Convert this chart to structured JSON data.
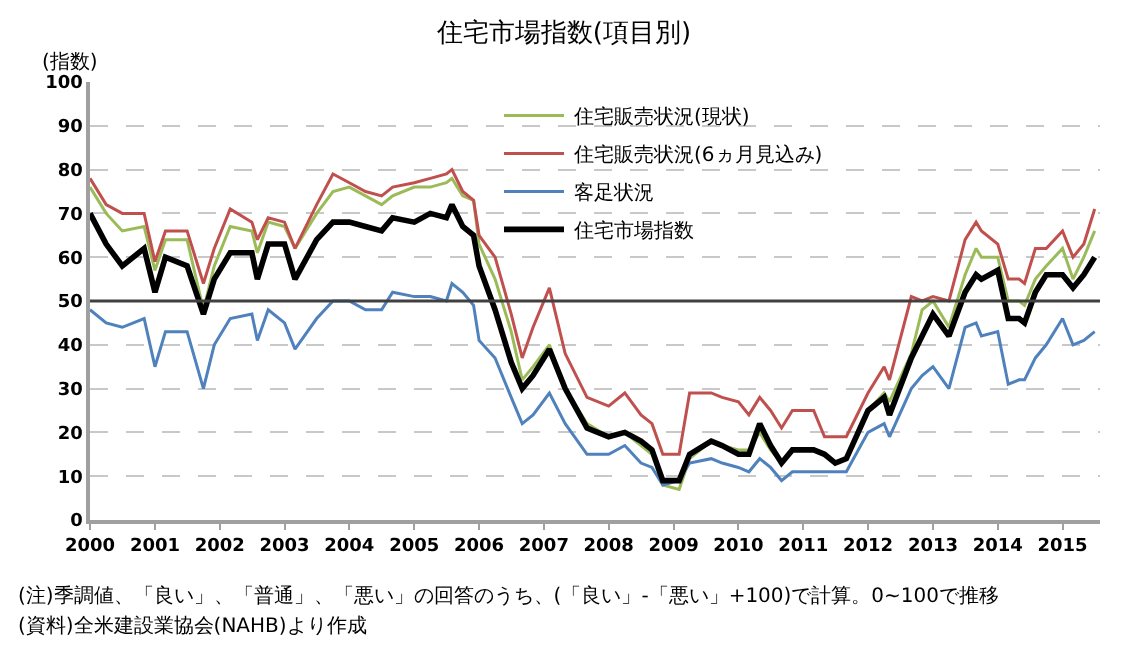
{
  "chart_data": {
    "type": "line",
    "title": "住宅市場指数(項目別)",
    "ylabel": "(指数)",
    "x": [
      "2000-01",
      "2000-04",
      "2000-07",
      "2000-11",
      "2001-01",
      "2001-03",
      "2001-07",
      "2001-10",
      "2001-12",
      "2002-03",
      "2002-07",
      "2002-08",
      "2002-10",
      "2003-01",
      "2003-03",
      "2003-07",
      "2003-10",
      "2004-01",
      "2004-04",
      "2004-07",
      "2004-09",
      "2005-01",
      "2005-04",
      "2005-07",
      "2005-08",
      "2005-10",
      "2005-12",
      "2006-01",
      "2006-04",
      "2006-07",
      "2006-09",
      "2006-11",
      "2007-02",
      "2007-05",
      "2007-09",
      "2008-01",
      "2008-04",
      "2008-07",
      "2008-09",
      "2008-11",
      "2009-02",
      "2009-04",
      "2009-08",
      "2009-10",
      "2010-01",
      "2010-03",
      "2010-05",
      "2010-07",
      "2010-09",
      "2010-11",
      "2011-03",
      "2011-05",
      "2011-07",
      "2011-09",
      "2012-01",
      "2012-04",
      "2012-05",
      "2012-09",
      "2012-11",
      "2013-01",
      "2013-04",
      "2013-07",
      "2013-09",
      "2013-10",
      "2014-01",
      "2014-03",
      "2014-05",
      "2014-06",
      "2014-08",
      "2014-10",
      "2015-01",
      "2015-03",
      "2015-05",
      "2015-07"
    ],
    "series": [
      {
        "name": "住宅販売状況(現状)",
        "color": "#9bbb59",
        "values": [
          76,
          70,
          66,
          67,
          57,
          64,
          64,
          48,
          58,
          67,
          66,
          61,
          68,
          67,
          62,
          70,
          75,
          76,
          74,
          72,
          74,
          76,
          76,
          77,
          78,
          74,
          73,
          63,
          55,
          43,
          32,
          35,
          40,
          30,
          22,
          19,
          20,
          17,
          15,
          8,
          7,
          14,
          18,
          17,
          16,
          16,
          20,
          16,
          13,
          16,
          16,
          15,
          13,
          14,
          25,
          29,
          27,
          38,
          48,
          50,
          44,
          56,
          62,
          60,
          60,
          50,
          50,
          49,
          55,
          58,
          62,
          55,
          60,
          66
        ]
      },
      {
        "name": "住宅販売状況(6ヵ月見込み)",
        "color": "#c0504d",
        "values": [
          78,
          72,
          70,
          70,
          59,
          66,
          66,
          54,
          62,
          71,
          68,
          64,
          69,
          68,
          62,
          72,
          79,
          77,
          75,
          74,
          76,
          77,
          78,
          79,
          80,
          75,
          73,
          65,
          60,
          47,
          37,
          44,
          53,
          38,
          28,
          26,
          29,
          24,
          22,
          15,
          15,
          29,
          29,
          28,
          27,
          24,
          28,
          25,
          21,
          25,
          25,
          19,
          19,
          19,
          29,
          35,
          32,
          51,
          50,
          51,
          50,
          64,
          68,
          66,
          63,
          55,
          55,
          54,
          62,
          62,
          66,
          60,
          63,
          71
        ]
      },
      {
        "name": "客足状況",
        "color": "#4f81bd",
        "values": [
          48,
          45,
          44,
          46,
          35,
          43,
          43,
          30,
          40,
          46,
          47,
          41,
          48,
          45,
          39,
          46,
          50,
          50,
          48,
          48,
          52,
          51,
          51,
          50,
          54,
          52,
          49,
          41,
          37,
          28,
          22,
          24,
          29,
          22,
          15,
          15,
          17,
          13,
          12,
          8,
          9,
          13,
          14,
          13,
          12,
          11,
          14,
          12,
          9,
          11,
          11,
          11,
          11,
          11,
          20,
          22,
          19,
          30,
          33,
          35,
          30,
          44,
          45,
          42,
          43,
          31,
          32,
          32,
          37,
          40,
          46,
          40,
          41,
          43
        ]
      },
      {
        "name": "住宅市場指数",
        "color": "#000000",
        "values": [
          70,
          63,
          58,
          62,
          52,
          60,
          58,
          47,
          55,
          61,
          61,
          55,
          63,
          63,
          55,
          64,
          68,
          68,
          67,
          66,
          69,
          68,
          70,
          69,
          72,
          67,
          65,
          58,
          48,
          36,
          30,
          33,
          39,
          30,
          21,
          19,
          20,
          18,
          16,
          9,
          9,
          15,
          18,
          17,
          15,
          15,
          22,
          17,
          13,
          16,
          16,
          15,
          13,
          14,
          25,
          28,
          24,
          37,
          42,
          47,
          42,
          52,
          56,
          55,
          57,
          46,
          46,
          45,
          52,
          56,
          56,
          53,
          56,
          60
        ]
      }
    ],
    "xlim": [
      "2000-01-01",
      "2015-07-31"
    ],
    "xticks": [
      "2000",
      "2001",
      "2002",
      "2003",
      "2004",
      "2005",
      "2006",
      "2007",
      "2008",
      "2009",
      "2010",
      "2011",
      "2012",
      "2013",
      "2014",
      "2015"
    ],
    "ylim": [
      0,
      100
    ],
    "yticks": [
      0,
      10,
      20,
      30,
      40,
      50,
      60,
      70,
      80,
      90,
      100
    ],
    "grid": "y",
    "legend": "top",
    "marker": "none",
    "line_style": "solid",
    "ref_lines": [
      {
        "axis": "y",
        "value": 50,
        "color": "#404040"
      }
    ],
    "annotations": [
      "(注)季調値、「良い」、「普通」、「悪い」の回答のうち、(「良い」-「悪い」+100)で計算。0~100で推移",
      "(資料)全米建設業協会(NAHB)より作成"
    ]
  }
}
